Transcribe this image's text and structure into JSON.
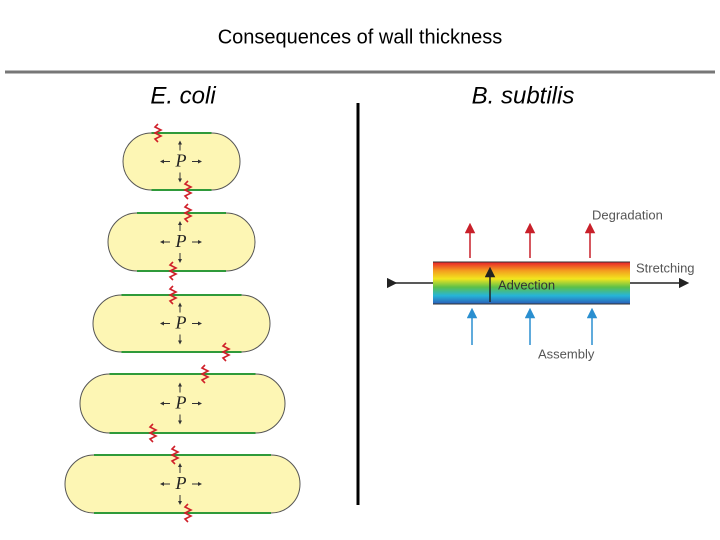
{
  "header": {
    "title": "Consequences of wall thickness"
  },
  "columns": [
    {
      "label": "E. coli"
    },
    {
      "label": "B. subtilis"
    }
  ],
  "cells": [
    {
      "label": "P"
    },
    {
      "label": "P"
    },
    {
      "label": "P"
    },
    {
      "label": "P"
    },
    {
      "label": "P"
    }
  ],
  "diagram": {
    "degradation": "Degradation",
    "stretching": "Stretching",
    "advection": "Advection",
    "assembly": "Assembly"
  }
}
